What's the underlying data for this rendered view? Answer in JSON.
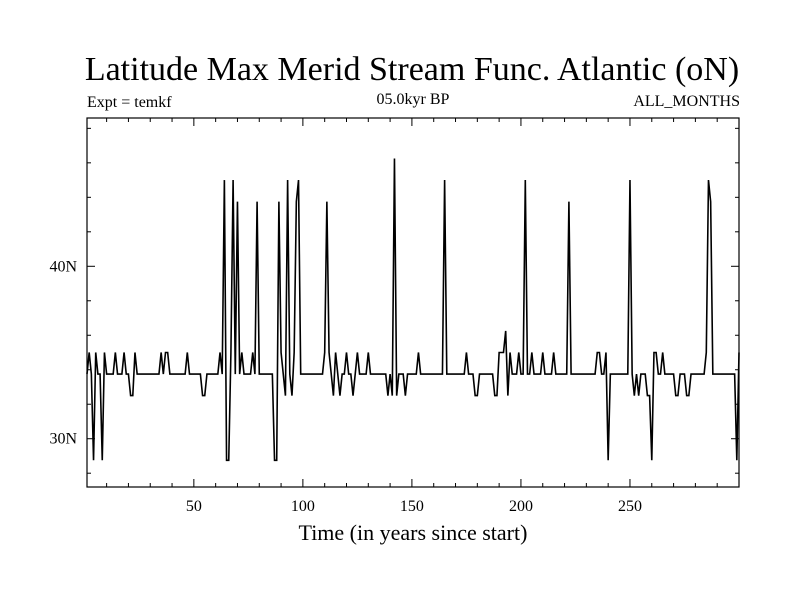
{
  "chart_data": {
    "type": "line",
    "title": "Latitude Max Merid Stream Func. Atlantic (oN)",
    "subtitle_left": "Expt = temkf",
    "subtitle_center": "05.0kyr BP",
    "subtitle_right": "ALL_MONTHS",
    "xlabel": "Time (in years since start)",
    "ylabel": "",
    "xlim": [
      1,
      300
    ],
    "ylim": [
      27.2,
      48.6
    ],
    "x_ticks": [
      50,
      100,
      150,
      200,
      250
    ],
    "x_tick_labels": [
      "50",
      "100",
      "150",
      "200",
      "250"
    ],
    "y_ticks": [
      30,
      40
    ],
    "y_tick_labels": [
      "30N",
      "40N"
    ],
    "grid": false,
    "series": [
      {
        "color": "#000000",
        "points": [
          [
            1,
            33.75
          ],
          [
            2,
            35.0
          ],
          [
            3,
            33.75
          ],
          [
            4,
            28.75
          ],
          [
            5,
            35.0
          ],
          [
            6,
            33.75
          ],
          [
            7,
            33.75
          ],
          [
            8,
            28.75
          ],
          [
            9,
            35.0
          ],
          [
            10,
            33.75
          ],
          [
            11,
            33.75
          ],
          [
            12,
            33.75
          ],
          [
            13,
            33.75
          ],
          [
            14,
            35.0
          ],
          [
            15,
            33.75
          ],
          [
            16,
            33.75
          ],
          [
            17,
            33.75
          ],
          [
            18,
            35.0
          ],
          [
            19,
            33.75
          ],
          [
            20,
            33.75
          ],
          [
            21,
            32.5
          ],
          [
            22,
            32.5
          ],
          [
            23,
            35.0
          ],
          [
            24,
            33.75
          ],
          [
            25,
            33.75
          ],
          [
            26,
            33.75
          ],
          [
            27,
            33.75
          ],
          [
            28,
            33.75
          ],
          [
            29,
            33.75
          ],
          [
            30,
            33.75
          ],
          [
            31,
            33.75
          ],
          [
            32,
            33.75
          ],
          [
            33,
            33.75
          ],
          [
            34,
            33.75
          ],
          [
            35,
            35.0
          ],
          [
            36,
            33.75
          ],
          [
            37,
            35.0
          ],
          [
            38,
            35.0
          ],
          [
            39,
            33.75
          ],
          [
            40,
            33.75
          ],
          [
            41,
            33.75
          ],
          [
            42,
            33.75
          ],
          [
            43,
            33.75
          ],
          [
            44,
            33.75
          ],
          [
            45,
            33.75
          ],
          [
            46,
            33.75
          ],
          [
            47,
            35.0
          ],
          [
            48,
            33.75
          ],
          [
            49,
            33.75
          ],
          [
            50,
            33.75
          ],
          [
            51,
            33.75
          ],
          [
            52,
            33.75
          ],
          [
            53,
            33.75
          ],
          [
            54,
            32.5
          ],
          [
            55,
            32.5
          ],
          [
            56,
            33.75
          ],
          [
            57,
            33.75
          ],
          [
            58,
            33.75
          ],
          [
            59,
            33.75
          ],
          [
            60,
            33.75
          ],
          [
            61,
            33.75
          ],
          [
            62,
            35.0
          ],
          [
            63,
            33.75
          ],
          [
            64,
            45.0
          ],
          [
            65,
            28.75
          ],
          [
            66,
            28.75
          ],
          [
            67,
            35.0
          ],
          [
            68,
            45.0
          ],
          [
            69,
            33.75
          ],
          [
            70,
            43.75
          ],
          [
            71,
            33.75
          ],
          [
            72,
            35.0
          ],
          [
            73,
            33.75
          ],
          [
            74,
            33.75
          ],
          [
            75,
            33.75
          ],
          [
            76,
            33.75
          ],
          [
            77,
            35.0
          ],
          [
            78,
            33.75
          ],
          [
            79,
            43.75
          ],
          [
            80,
            33.75
          ],
          [
            81,
            33.75
          ],
          [
            82,
            33.75
          ],
          [
            83,
            33.75
          ],
          [
            84,
            33.75
          ],
          [
            85,
            33.75
          ],
          [
            86,
            33.75
          ],
          [
            87,
            28.75
          ],
          [
            88,
            28.75
          ],
          [
            89,
            43.75
          ],
          [
            90,
            35.0
          ],
          [
            91,
            33.75
          ],
          [
            92,
            32.5
          ],
          [
            93,
            45.0
          ],
          [
            94,
            33.75
          ],
          [
            95,
            32.5
          ],
          [
            96,
            35.0
          ],
          [
            97,
            43.75
          ],
          [
            98,
            45.0
          ],
          [
            99,
            33.75
          ],
          [
            100,
            33.75
          ],
          [
            101,
            33.75
          ],
          [
            102,
            33.75
          ],
          [
            103,
            33.75
          ],
          [
            104,
            33.75
          ],
          [
            105,
            33.75
          ],
          [
            106,
            33.75
          ],
          [
            107,
            33.75
          ],
          [
            108,
            33.75
          ],
          [
            109,
            33.75
          ],
          [
            110,
            35.0
          ],
          [
            111,
            43.75
          ],
          [
            112,
            35.0
          ],
          [
            113,
            33.75
          ],
          [
            114,
            32.5
          ],
          [
            115,
            35.0
          ],
          [
            116,
            33.75
          ],
          [
            117,
            32.5
          ],
          [
            118,
            33.75
          ],
          [
            119,
            33.75
          ],
          [
            120,
            35.0
          ],
          [
            121,
            33.75
          ],
          [
            122,
            33.75
          ],
          [
            123,
            32.5
          ],
          [
            124,
            33.75
          ],
          [
            125,
            35.0
          ],
          [
            126,
            33.75
          ],
          [
            127,
            33.75
          ],
          [
            128,
            33.75
          ],
          [
            129,
            33.75
          ],
          [
            130,
            35.0
          ],
          [
            131,
            33.75
          ],
          [
            132,
            33.75
          ],
          [
            133,
            33.75
          ],
          [
            134,
            33.75
          ],
          [
            135,
            33.75
          ],
          [
            136,
            33.75
          ],
          [
            137,
            33.75
          ],
          [
            138,
            33.75
          ],
          [
            139,
            32.5
          ],
          [
            140,
            33.75
          ],
          [
            141,
            32.5
          ],
          [
            142,
            46.25
          ],
          [
            143,
            32.5
          ],
          [
            144,
            33.75
          ],
          [
            145,
            33.75
          ],
          [
            146,
            33.75
          ],
          [
            147,
            32.5
          ],
          [
            148,
            33.75
          ],
          [
            149,
            33.75
          ],
          [
            150,
            33.75
          ],
          [
            151,
            33.75
          ],
          [
            152,
            33.75
          ],
          [
            153,
            35.0
          ],
          [
            154,
            33.75
          ],
          [
            155,
            33.75
          ],
          [
            156,
            33.75
          ],
          [
            157,
            33.75
          ],
          [
            158,
            33.75
          ],
          [
            159,
            33.75
          ],
          [
            160,
            33.75
          ],
          [
            161,
            33.75
          ],
          [
            162,
            33.75
          ],
          [
            163,
            33.75
          ],
          [
            164,
            33.75
          ],
          [
            165,
            45.0
          ],
          [
            166,
            33.75
          ],
          [
            167,
            33.75
          ],
          [
            168,
            33.75
          ],
          [
            169,
            33.75
          ],
          [
            170,
            33.75
          ],
          [
            171,
            33.75
          ],
          [
            172,
            33.75
          ],
          [
            173,
            33.75
          ],
          [
            174,
            33.75
          ],
          [
            175,
            35.0
          ],
          [
            176,
            33.75
          ],
          [
            177,
            33.75
          ],
          [
            178,
            33.75
          ],
          [
            179,
            32.5
          ],
          [
            180,
            32.5
          ],
          [
            181,
            33.75
          ],
          [
            182,
            33.75
          ],
          [
            183,
            33.75
          ],
          [
            184,
            33.75
          ],
          [
            185,
            33.75
          ],
          [
            186,
            33.75
          ],
          [
            187,
            33.75
          ],
          [
            188,
            32.5
          ],
          [
            189,
            32.5
          ],
          [
            190,
            35.0
          ],
          [
            191,
            35.0
          ],
          [
            192,
            35.0
          ],
          [
            193,
            36.25
          ],
          [
            194,
            32.5
          ],
          [
            195,
            35.0
          ],
          [
            196,
            33.75
          ],
          [
            197,
            33.75
          ],
          [
            198,
            33.75
          ],
          [
            199,
            35.0
          ],
          [
            200,
            33.75
          ],
          [
            201,
            33.75
          ],
          [
            202,
            45.0
          ],
          [
            203,
            33.75
          ],
          [
            204,
            33.75
          ],
          [
            205,
            35.0
          ],
          [
            206,
            33.75
          ],
          [
            207,
            33.75
          ],
          [
            208,
            33.75
          ],
          [
            209,
            33.75
          ],
          [
            210,
            35.0
          ],
          [
            211,
            33.75
          ],
          [
            212,
            33.75
          ],
          [
            213,
            33.75
          ],
          [
            214,
            33.75
          ],
          [
            215,
            35.0
          ],
          [
            216,
            33.75
          ],
          [
            217,
            33.75
          ],
          [
            218,
            33.75
          ],
          [
            219,
            33.75
          ],
          [
            220,
            33.75
          ],
          [
            221,
            33.75
          ],
          [
            222,
            43.75
          ],
          [
            223,
            33.75
          ],
          [
            224,
            33.75
          ],
          [
            225,
            33.75
          ],
          [
            226,
            33.75
          ],
          [
            227,
            33.75
          ],
          [
            228,
            33.75
          ],
          [
            229,
            33.75
          ],
          [
            230,
            33.75
          ],
          [
            231,
            33.75
          ],
          [
            232,
            33.75
          ],
          [
            233,
            33.75
          ],
          [
            234,
            33.75
          ],
          [
            235,
            35.0
          ],
          [
            236,
            35.0
          ],
          [
            237,
            33.75
          ],
          [
            238,
            33.75
          ],
          [
            239,
            35.0
          ],
          [
            240,
            28.75
          ],
          [
            241,
            33.75
          ],
          [
            242,
            33.75
          ],
          [
            243,
            33.75
          ],
          [
            244,
            33.75
          ],
          [
            245,
            33.75
          ],
          [
            246,
            33.75
          ],
          [
            247,
            33.75
          ],
          [
            248,
            33.75
          ],
          [
            249,
            33.75
          ],
          [
            250,
            45.0
          ],
          [
            251,
            33.75
          ],
          [
            252,
            32.5
          ],
          [
            253,
            33.75
          ],
          [
            254,
            32.5
          ],
          [
            255,
            33.75
          ],
          [
            256,
            33.75
          ],
          [
            257,
            33.75
          ],
          [
            258,
            32.5
          ],
          [
            259,
            32.5
          ],
          [
            260,
            28.75
          ],
          [
            261,
            35.0
          ],
          [
            262,
            35.0
          ],
          [
            263,
            33.75
          ],
          [
            264,
            33.75
          ],
          [
            265,
            35.0
          ],
          [
            266,
            33.75
          ],
          [
            267,
            33.75
          ],
          [
            268,
            33.75
          ],
          [
            269,
            33.75
          ],
          [
            270,
            33.75
          ],
          [
            271,
            32.5
          ],
          [
            272,
            32.5
          ],
          [
            273,
            33.75
          ],
          [
            274,
            33.75
          ],
          [
            275,
            33.75
          ],
          [
            276,
            32.5
          ],
          [
            277,
            32.5
          ],
          [
            278,
            33.75
          ],
          [
            279,
            33.75
          ],
          [
            280,
            33.75
          ],
          [
            281,
            33.75
          ],
          [
            282,
            33.75
          ],
          [
            283,
            33.75
          ],
          [
            284,
            33.75
          ],
          [
            285,
            35.0
          ],
          [
            286,
            45.0
          ],
          [
            287,
            43.75
          ],
          [
            288,
            33.75
          ],
          [
            289,
            33.75
          ],
          [
            290,
            33.75
          ],
          [
            291,
            33.75
          ],
          [
            292,
            33.75
          ],
          [
            293,
            33.75
          ],
          [
            294,
            33.75
          ],
          [
            295,
            33.75
          ],
          [
            296,
            33.75
          ],
          [
            297,
            33.75
          ],
          [
            298,
            33.75
          ],
          [
            299,
            28.75
          ],
          [
            300,
            35.0
          ]
        ]
      }
    ]
  }
}
